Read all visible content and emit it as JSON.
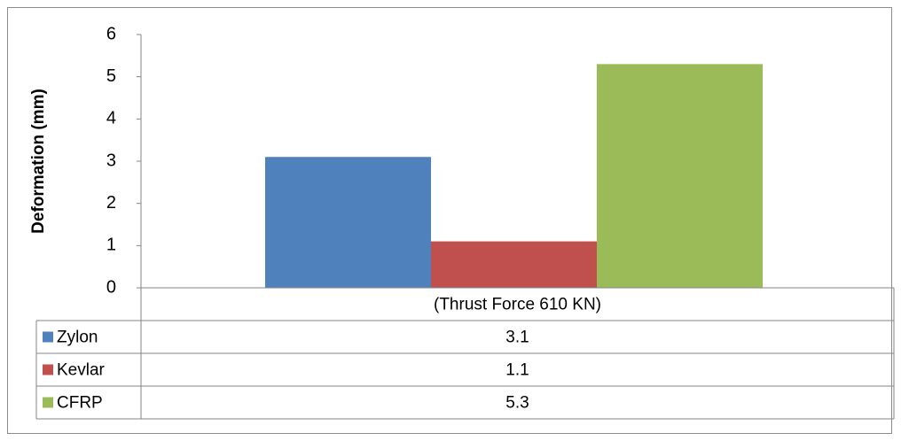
{
  "chart_data": {
    "type": "bar",
    "categories": [
      "(Thrust Force 610 KN)"
    ],
    "series": [
      {
        "name": "Zylon",
        "values": [
          3.1
        ],
        "color": "#4f81bd",
        "value_label": "3.1"
      },
      {
        "name": "Kevlar",
        "values": [
          1.1
        ],
        "color": "#c0504d",
        "value_label": "1.1"
      },
      {
        "name": "CFRP",
        "values": [
          5.3
        ],
        "color": "#9bbb59",
        "value_label": "5.3"
      }
    ],
    "ylabel": "Deformation (mm)",
    "ylim": [
      0,
      6
    ],
    "yticks": [
      "0",
      "1",
      "2",
      "3",
      "4",
      "5",
      "6"
    ],
    "grid": false,
    "legend": "data-table"
  }
}
